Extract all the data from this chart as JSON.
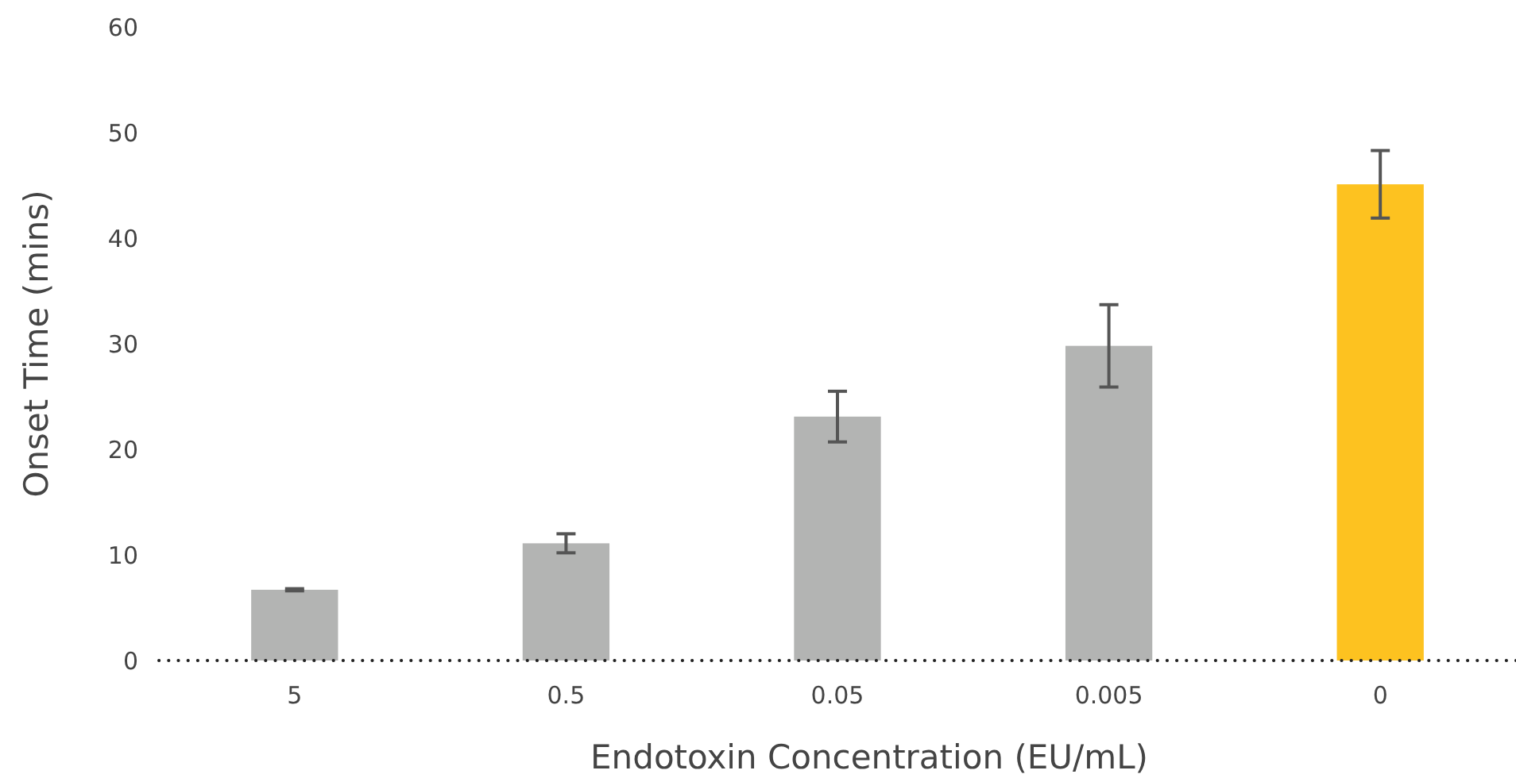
{
  "chart_data": {
    "type": "bar",
    "xlabel": "Endotoxin Concentration (EU/mL)",
    "ylabel": "Onset Time (mins)",
    "categories": [
      "5",
      "0.5",
      "0.05",
      "0.005",
      "0"
    ],
    "values": [
      6.7,
      11.1,
      23.1,
      29.8,
      45.1
    ],
    "errors": [
      0.1,
      0.9,
      2.4,
      3.9,
      3.2
    ],
    "colors": [
      "#b3b4b3",
      "#b3b4b3",
      "#b3b4b3",
      "#b3b4b3",
      "#fdc220"
    ],
    "ylim": [
      0,
      60
    ],
    "yticks": [
      0,
      10,
      20,
      30,
      40,
      50,
      60
    ],
    "grid": false
  }
}
